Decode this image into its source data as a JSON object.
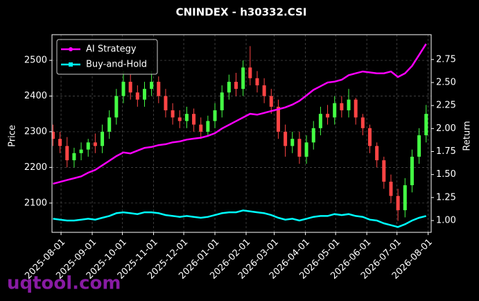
{
  "chart_data": {
    "type": "candlestick",
    "title": "CNINDEX - h30332.CSI",
    "ylabel": "Price",
    "y2label": "Return",
    "watermark": "uqtool.com",
    "legend": "upper left",
    "grid": true,
    "up_color": "#44ff44",
    "down_color": "#ff4444",
    "x": [
      "2025-07-24",
      "2025-07-31",
      "2025-08-07",
      "2025-08-14",
      "2025-08-21",
      "2025-08-28",
      "2025-09-04",
      "2025-09-11",
      "2025-09-18",
      "2025-09-25",
      "2025-10-02",
      "2025-10-09",
      "2025-10-16",
      "2025-10-23",
      "2025-10-30",
      "2025-11-06",
      "2025-11-13",
      "2025-11-20",
      "2025-11-27",
      "2025-12-04",
      "2025-12-11",
      "2025-12-18",
      "2025-12-25",
      "2026-01-01",
      "2026-01-08",
      "2026-01-15",
      "2026-01-22",
      "2026-01-29",
      "2026-02-05",
      "2026-02-12",
      "2026-02-19",
      "2026-02-26",
      "2026-03-05",
      "2026-03-12",
      "2026-03-19",
      "2026-03-26",
      "2026-04-02",
      "2026-04-09",
      "2026-04-16",
      "2026-04-23",
      "2026-04-30",
      "2026-05-07",
      "2026-05-14",
      "2026-05-21",
      "2026-05-28",
      "2026-06-04",
      "2026-06-11",
      "2026-06-18",
      "2026-06-25",
      "2026-07-02",
      "2026-07-09",
      "2026-07-16",
      "2026-07-23",
      "2026-07-30"
    ],
    "open": [
      2300,
      2280,
      2260,
      2220,
      2240,
      2250,
      2270,
      2260,
      2300,
      2340,
      2400,
      2440,
      2410,
      2390,
      2420,
      2440,
      2400,
      2360,
      2340,
      2330,
      2350,
      2320,
      2300,
      2330,
      2360,
      2410,
      2440,
      2420,
      2480,
      2450,
      2430,
      2400,
      2370,
      2300,
      2260,
      2280,
      2230,
      2270,
      2310,
      2350,
      2340,
      2380,
      2360,
      2390,
      2340,
      2310,
      2260,
      2220,
      2160,
      2120,
      2080,
      2150,
      2230,
      2290
    ],
    "high": [
      2320,
      2300,
      2285,
      2255,
      2270,
      2280,
      2295,
      2320,
      2360,
      2420,
      2470,
      2460,
      2430,
      2440,
      2470,
      2455,
      2420,
      2380,
      2360,
      2370,
      2365,
      2340,
      2345,
      2380,
      2430,
      2460,
      2465,
      2500,
      2540,
      2470,
      2450,
      2420,
      2390,
      2320,
      2300,
      2300,
      2290,
      2330,
      2370,
      2375,
      2400,
      2400,
      2420,
      2395,
      2350,
      2320,
      2270,
      2230,
      2180,
      2140,
      2170,
      2250,
      2310,
      2375
    ],
    "low": [
      2260,
      2240,
      2200,
      2200,
      2220,
      2230,
      2240,
      2240,
      2280,
      2320,
      2380,
      2390,
      2370,
      2370,
      2400,
      2380,
      2340,
      2320,
      2310,
      2310,
      2300,
      2280,
      2290,
      2310,
      2340,
      2390,
      2400,
      2400,
      2430,
      2410,
      2380,
      2350,
      2280,
      2230,
      2240,
      2210,
      2210,
      2250,
      2290,
      2320,
      2320,
      2340,
      2340,
      2320,
      2290,
      2240,
      2200,
      2140,
      2100,
      2050,
      2060,
      2130,
      2210,
      2270
    ],
    "close": [
      2280,
      2260,
      2220,
      2240,
      2250,
      2270,
      2260,
      2300,
      2340,
      2400,
      2440,
      2410,
      2390,
      2420,
      2440,
      2400,
      2360,
      2340,
      2330,
      2350,
      2320,
      2300,
      2330,
      2360,
      2410,
      2440,
      2420,
      2480,
      2450,
      2430,
      2400,
      2370,
      2300,
      2260,
      2280,
      2230,
      2270,
      2310,
      2350,
      2340,
      2380,
      2360,
      2390,
      2340,
      2310,
      2260,
      2220,
      2160,
      2120,
      2080,
      2150,
      2230,
      2290,
      2350
    ],
    "series": [
      {
        "name": "AI Strategy",
        "color": "#ff00ff",
        "axis": "y2",
        "marker": "circle",
        "values": [
          1.4,
          1.42,
          1.44,
          1.46,
          1.48,
          1.52,
          1.55,
          1.6,
          1.65,
          1.7,
          1.74,
          1.73,
          1.76,
          1.79,
          1.8,
          1.82,
          1.83,
          1.85,
          1.86,
          1.88,
          1.89,
          1.9,
          1.92,
          1.95,
          2.0,
          2.04,
          2.08,
          2.12,
          2.16,
          2.15,
          2.17,
          2.19,
          2.21,
          2.23,
          2.26,
          2.3,
          2.36,
          2.42,
          2.46,
          2.5,
          2.51,
          2.53,
          2.58,
          2.6,
          2.62,
          2.61,
          2.6,
          2.6,
          2.62,
          2.56,
          2.6,
          2.68,
          2.8,
          2.92
        ]
      },
      {
        "name": "Buy-and-Hold",
        "color": "#00ffff",
        "axis": "y2",
        "marker": "square",
        "values": [
          1.02,
          1.01,
          1.0,
          1.0,
          1.01,
          1.02,
          1.01,
          1.03,
          1.05,
          1.08,
          1.09,
          1.08,
          1.07,
          1.09,
          1.09,
          1.08,
          1.06,
          1.05,
          1.04,
          1.05,
          1.04,
          1.03,
          1.04,
          1.06,
          1.08,
          1.09,
          1.09,
          1.11,
          1.1,
          1.09,
          1.08,
          1.06,
          1.03,
          1.01,
          1.02,
          1.0,
          1.02,
          1.04,
          1.05,
          1.05,
          1.07,
          1.06,
          1.07,
          1.05,
          1.04,
          1.01,
          1.0,
          0.97,
          0.95,
          0.93,
          0.96,
          1.0,
          1.03,
          1.05
        ]
      }
    ],
    "xlim": [
      "2025-07-23",
      "2026-08-04"
    ],
    "xticks": [
      "2025-08-01",
      "2025-09-01",
      "2025-10-01",
      "2025-11-01",
      "2025-12-01",
      "2026-01-01",
      "2026-02-01",
      "2026-03-01",
      "2026-04-01",
      "2026-05-01",
      "2026-06-01",
      "2026-07-01",
      "2026-08-01"
    ],
    "ylim": [
      2018,
      2572
    ],
    "yticks": [
      2100,
      2200,
      2300,
      2400,
      2500
    ],
    "y2lim": [
      0.872,
      3.02
    ],
    "y2ticks": [
      {
        "value": 1,
        "label": "1.00"
      },
      1.25,
      {
        "value": 1.5,
        "label": "1.50"
      },
      1.75,
      {
        "value": 2,
        "label": "2.00"
      },
      2.25,
      {
        "value": 2.5,
        "label": "2.50"
      },
      2.75
    ]
  }
}
